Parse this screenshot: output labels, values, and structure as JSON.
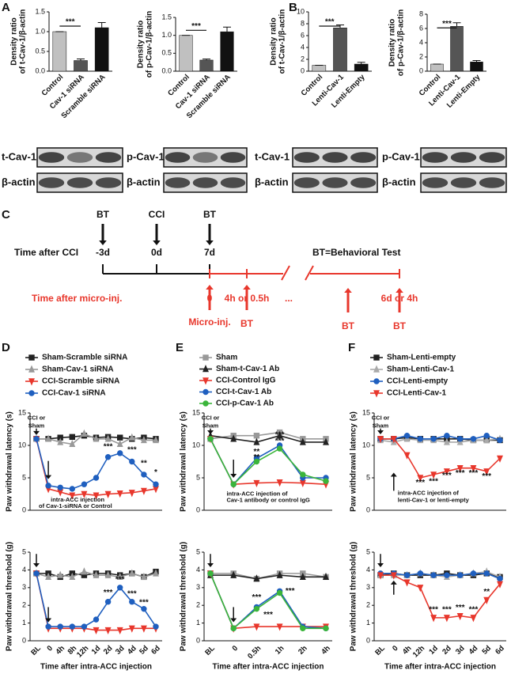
{
  "panel_labels": [
    "A",
    "B",
    "C",
    "D",
    "E",
    "F"
  ],
  "blots": [
    {
      "top": "t-Cav-1",
      "bottom": "β-actin"
    },
    {
      "top": "p-Cav-1",
      "bottom": "β-actin"
    },
    {
      "top": "t-Cav-1",
      "bottom": "β-actin"
    },
    {
      "top": "p-Cav-1",
      "bottom": "β-actin"
    }
  ],
  "diagram": {
    "top_labels": [
      "BT",
      "CCI",
      "BT"
    ],
    "time_label": "Time  after CCI",
    "days": [
      "-3d",
      "0d",
      "7d"
    ],
    "legend": "BT=Behavioral Test",
    "micro_time_label": "Time after micro-inj.",
    "micro_times": [
      "0",
      "4h or 0.5h",
      "...",
      "6d or 4h"
    ],
    "micro_inj": "Micro-inj.",
    "bottom_labels": [
      "BT",
      "BT",
      "BT"
    ]
  },
  "chart_data": [
    {
      "type": "bar",
      "y_label": [
        "Density ratio",
        "of t-Cav-1/β-actin"
      ],
      "categories": [
        "Control",
        "Cav-1 siRNA",
        "Scramble siRNA"
      ],
      "values": [
        1.0,
        0.27,
        1.1
      ],
      "errors": [
        0,
        0.04,
        0.13
      ],
      "colors": [
        "#c0c0c0",
        "#555555",
        "#111111"
      ],
      "significance": "***",
      "ylim": [
        0,
        1.5
      ],
      "yticks": [
        {
          "value": 0,
          "label": "0.0"
        },
        0.5,
        {
          "value": 1,
          "label": "1.0"
        },
        1.5
      ]
    },
    {
      "type": "bar",
      "y_label": [
        "Density ratio",
        "of p-Cav-1/β-actin"
      ],
      "categories": [
        "Control",
        "Cav-1 siRNA",
        "Scramble siRNA"
      ],
      "values": [
        1.0,
        0.31,
        1.1
      ],
      "errors": [
        0,
        0.03,
        0.13
      ],
      "colors": [
        "#c0c0c0",
        "#555555",
        "#111111"
      ],
      "significance": "***",
      "ylim": [
        0,
        1.5
      ],
      "yticks": [
        {
          "value": 0,
          "label": "0.0"
        },
        0.5,
        {
          "value": 1,
          "label": "1.0"
        },
        1.5
      ]
    },
    {
      "type": "bar",
      "y_label": [
        "Density ratio",
        "of t-Cav-1/β-actin"
      ],
      "categories": [
        "Control",
        "Lenti-Cav-1",
        "Lenti-Empty"
      ],
      "values": [
        1.0,
        7.3,
        1.2
      ],
      "errors": [
        0,
        0.5,
        0.3
      ],
      "colors": [
        "#c0c0c0",
        "#555555",
        "#111111"
      ],
      "significance": "***",
      "ylim": [
        0,
        10
      ],
      "yticks": [
        0,
        2,
        4,
        6,
        8,
        10
      ]
    },
    {
      "type": "bar",
      "y_label": [
        "Density ratio",
        "of p-Cav-1/β-actin"
      ],
      "categories": [
        "Control",
        "Lenti-Cav-1",
        "Lenti-Empty"
      ],
      "values": [
        1.0,
        6.3,
        1.3
      ],
      "errors": [
        0,
        0.5,
        0.2
      ],
      "colors": [
        "#c0c0c0",
        "#555555",
        "#111111"
      ],
      "significance": "***",
      "ylim": [
        0,
        8
      ],
      "yticks": [
        0,
        2,
        4,
        6,
        8
      ]
    },
    {
      "type": "line",
      "y_label": "Paw withdrawal latency (s)",
      "ylim": [
        0,
        15
      ],
      "yticks": [
        0,
        5,
        10,
        15
      ],
      "annotations": [
        "CCI or",
        "Sham",
        "intra-ACC injection",
        "of Cav-1-siRNA or Control",
        "***",
        "***",
        "**",
        "*"
      ],
      "series": [
        {
          "name": "Sham-Scramble siRNA",
          "color": "#222222",
          "marker": "square",
          "values": [
            11,
            11,
            11.2,
            11.3,
            11.5,
            11.2,
            11.3,
            11.2,
            11,
            11.2,
            11
          ]
        },
        {
          "name": "Sham-Cav-1 siRNA",
          "color": "#999999",
          "marker": "triangle",
          "values": [
            11,
            11,
            10.5,
            10.2,
            11.8,
            11,
            11,
            10.2,
            11.2,
            10.8,
            10.8
          ]
        },
        {
          "name": "CCI-Scramble siRNA",
          "color": "#e8372c",
          "marker": "down",
          "values": [
            11,
            3.3,
            2.8,
            2.3,
            2.5,
            2.3,
            2.5,
            2.6,
            2.7,
            3,
            3.3
          ]
        },
        {
          "name": "CCI-Cav-1 siRNA",
          "color": "#1f5fbf",
          "marker": "circle",
          "values": [
            11,
            3.8,
            3.5,
            3.3,
            4,
            5,
            8.2,
            8.8,
            7.5,
            5.5,
            4
          ]
        }
      ]
    },
    {
      "type": "line",
      "y_label": "Paw withdrawal threshold (g)",
      "x_label": "Time after intra-ACC injection",
      "categories": [
        "BL",
        "0",
        "4h",
        "8h",
        "12h",
        "1d",
        "2d",
        "3d",
        "4d",
        "5d",
        "6d"
      ],
      "ylim": [
        0,
        5
      ],
      "yticks": [
        0,
        1,
        2,
        3,
        4,
        5
      ],
      "annotations": [
        "***",
        "***",
        "***",
        "***"
      ],
      "series": [
        {
          "color": "#222222",
          "marker": "square",
          "values": [
            3.8,
            3.8,
            3.6,
            3.8,
            3.7,
            3.8,
            3.8,
            3.7,
            3.8,
            3.6,
            3.9
          ]
        },
        {
          "color": "#999999",
          "marker": "triangle",
          "values": [
            3.8,
            3.6,
            3.7,
            3.6,
            3.9,
            3.7,
            3.7,
            3.6,
            3.8,
            3.6,
            3.8
          ]
        },
        {
          "color": "#e8372c",
          "marker": "down",
          "values": [
            3.8,
            0.7,
            0.7,
            0.7,
            0.7,
            0.6,
            0.6,
            0.6,
            0.7,
            0.7,
            0.7
          ]
        },
        {
          "color": "#1f5fbf",
          "marker": "circle",
          "values": [
            3.8,
            0.8,
            0.8,
            0.8,
            0.8,
            1.2,
            2.2,
            3.0,
            2.2,
            1.8,
            0.8
          ]
        }
      ]
    },
    {
      "type": "line",
      "y_label": "Paw withdrawal latency (s)",
      "ylim": [
        0,
        15
      ],
      "yticks": [
        0,
        5,
        10,
        15
      ],
      "annotations": [
        "CCI or",
        "Sham",
        "**",
        "**",
        "***",
        "***",
        "intra-ACC injection of",
        "Cav-1 antibody or control IgG"
      ],
      "series": [
        {
          "name": "Sham",
          "color": "#999999",
          "marker": "square",
          "values": [
            11,
            11.5,
            11.5,
            12,
            11,
            11
          ]
        },
        {
          "name": "Sham-t-Cav-1 Ab",
          "color": "#222222",
          "marker": "triangle",
          "values": [
            11.5,
            11,
            10.5,
            11.5,
            10.5,
            10.5
          ]
        },
        {
          "name": "CCI-Control IgG",
          "color": "#e8372c",
          "marker": "down",
          "values": [
            11,
            4,
            4.2,
            4.3,
            4.2,
            4
          ]
        },
        {
          "name": "CCI-t-Cav-1 Ab",
          "color": "#1f5fbf",
          "marker": "circle",
          "values": [
            11,
            4,
            8,
            10,
            5,
            5
          ]
        },
        {
          "name": "CCI-p-Cav-1 Ab",
          "color": "#3bb53b",
          "marker": "circle",
          "values": [
            11,
            4,
            7.5,
            9.5,
            5.5,
            4.5
          ]
        }
      ]
    },
    {
      "type": "line",
      "y_label": "Paw withdrawal threshold (g)",
      "x_label": "Time after intra-ACC injection",
      "categories": [
        "BL",
        "0",
        "0.5h",
        "1h",
        "2h",
        "4h"
      ],
      "ylim": [
        0,
        5
      ],
      "yticks": [
        0,
        1,
        2,
        3,
        4,
        5
      ],
      "annotations": [
        "***",
        "***",
        "***"
      ],
      "series": [
        {
          "color": "#999999",
          "marker": "square",
          "values": [
            3.8,
            3.8,
            3.5,
            3.8,
            3.8,
            3.6
          ]
        },
        {
          "color": "#222222",
          "marker": "triangle",
          "values": [
            3.7,
            3.7,
            3.5,
            3.7,
            3.6,
            3.6
          ]
        },
        {
          "color": "#e8372c",
          "marker": "down",
          "values": [
            3.8,
            0.7,
            0.8,
            0.8,
            0.8,
            0.8
          ]
        },
        {
          "color": "#1f5fbf",
          "marker": "circle",
          "values": [
            3.8,
            0.7,
            1.9,
            2.8,
            0.8,
            0.7
          ]
        },
        {
          "color": "#3bb53b",
          "marker": "circle",
          "values": [
            3.8,
            0.7,
            1.8,
            2.7,
            0.7,
            0.7
          ]
        }
      ]
    },
    {
      "type": "line",
      "y_label": "Paw withdrawal latency (s)",
      "ylim": [
        0,
        15
      ],
      "yticks": [
        0,
        5,
        10,
        15
      ],
      "annotations": [
        "CCI or",
        "Sham",
        "***",
        "***",
        "***",
        "***",
        "***",
        "***",
        "intra-ACC injection of",
        "lenti-Cav-1 or lenti-empty"
      ],
      "series": [
        {
          "name": "Sham-Lenti-empty",
          "color": "#222222",
          "marker": "square",
          "values": [
            11,
            11,
            11.2,
            11,
            11,
            11,
            11,
            10.8,
            10.8,
            10.8
          ]
        },
        {
          "name": "Sham-Lenti-Cav-1",
          "color": "#aaaaaa",
          "marker": "triangle",
          "values": [
            10.8,
            10.5,
            11,
            10.8,
            10.8,
            10.5,
            10.5,
            10.8,
            10.8,
            11
          ]
        },
        {
          "name": "CCI-Lenti-empty",
          "color": "#1f5fbf",
          "marker": "circle",
          "values": [
            11,
            11,
            11.5,
            11,
            11,
            11.5,
            11,
            11,
            11.5,
            10.8
          ]
        },
        {
          "name": "CCI-Lenti-Cav-1",
          "color": "#e8372c",
          "marker": "down",
          "values": [
            11,
            11,
            8.5,
            5,
            5.5,
            6,
            6.5,
            6.5,
            6,
            8
          ]
        }
      ]
    },
    {
      "type": "line",
      "y_label": "Paw withdrawal threshold (g)",
      "x_label": "Time after intra-ACC injection",
      "categories": [
        "BL",
        "0",
        "4h",
        "12h",
        "1d",
        "2d",
        "3d",
        "4d",
        "5d",
        "6d"
      ],
      "ylim": [
        0,
        5
      ],
      "yticks": [
        0,
        1,
        2,
        3,
        4,
        5
      ],
      "annotations": [
        "***",
        "***",
        "***",
        "***",
        "**"
      ],
      "series": [
        {
          "color": "#222222",
          "marker": "square",
          "values": [
            3.7,
            3.8,
            3.7,
            3.7,
            3.7,
            3.8,
            3.7,
            3.7,
            3.8,
            3.6
          ]
        },
        {
          "color": "#aaaaaa",
          "marker": "triangle",
          "values": [
            3.7,
            3.7,
            3.7,
            3.8,
            3.7,
            3.6,
            3.7,
            3.8,
            3.9,
            3.6
          ]
        },
        {
          "color": "#1f5fbf",
          "marker": "circle",
          "values": [
            3.8,
            3.8,
            3.7,
            3.8,
            3.7,
            3.7,
            3.7,
            3.8,
            3.8,
            3.5
          ]
        },
        {
          "color": "#e8372c",
          "marker": "down",
          "values": [
            3.7,
            3.7,
            3.3,
            3.0,
            1.3,
            1.3,
            1.4,
            1.3,
            2.3,
            3.2
          ]
        }
      ]
    }
  ]
}
